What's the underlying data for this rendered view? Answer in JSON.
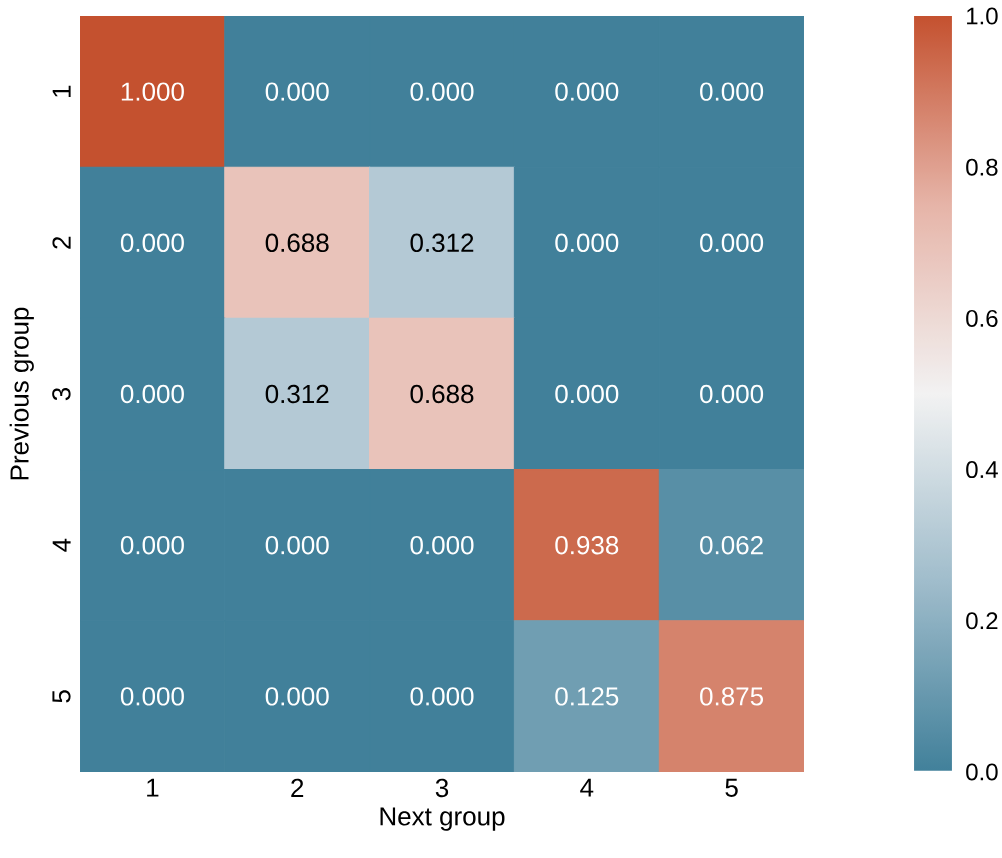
{
  "chart_data": {
    "type": "heatmap",
    "xlabel": "Next group",
    "ylabel": "Previous group",
    "categories": [
      "1",
      "2",
      "3",
      "4",
      "5"
    ],
    "y_categories": [
      "1",
      "2",
      "3",
      "4",
      "5"
    ],
    "cells": [
      [
        1.0,
        0.0,
        0.0,
        0.0,
        0.0
      ],
      [
        0.0,
        0.688,
        0.312,
        0.0,
        0.0
      ],
      [
        0.0,
        0.312,
        0.688,
        0.0,
        0.0
      ],
      [
        0.0,
        0.0,
        0.0,
        0.938,
        0.062
      ],
      [
        0.0,
        0.0,
        0.0,
        0.125,
        0.875
      ]
    ],
    "cell_labels": [
      [
        "1.000",
        "0.000",
        "0.000",
        "0.000",
        "0.000"
      ],
      [
        "0.000",
        "0.688",
        "0.312",
        "0.000",
        "0.000"
      ],
      [
        "0.000",
        "0.312",
        "0.688",
        "0.000",
        "0.000"
      ],
      [
        "0.000",
        "0.000",
        "0.000",
        "0.938",
        "0.062"
      ],
      [
        "0.000",
        "0.000",
        "0.000",
        "0.125",
        "0.875"
      ]
    ],
    "clim": [
      0.0,
      1.0
    ],
    "cticks": [
      {
        "value": 0.0,
        "label": "0.0"
      },
      {
        "value": 0.2,
        "label": "0.2"
      },
      {
        "value": 0.4,
        "label": "0.4"
      },
      {
        "value": 0.6,
        "label": "0.6"
      },
      {
        "value": 0.8,
        "label": "0.8"
      },
      {
        "value": 1.0,
        "label": "1.0"
      }
    ]
  }
}
